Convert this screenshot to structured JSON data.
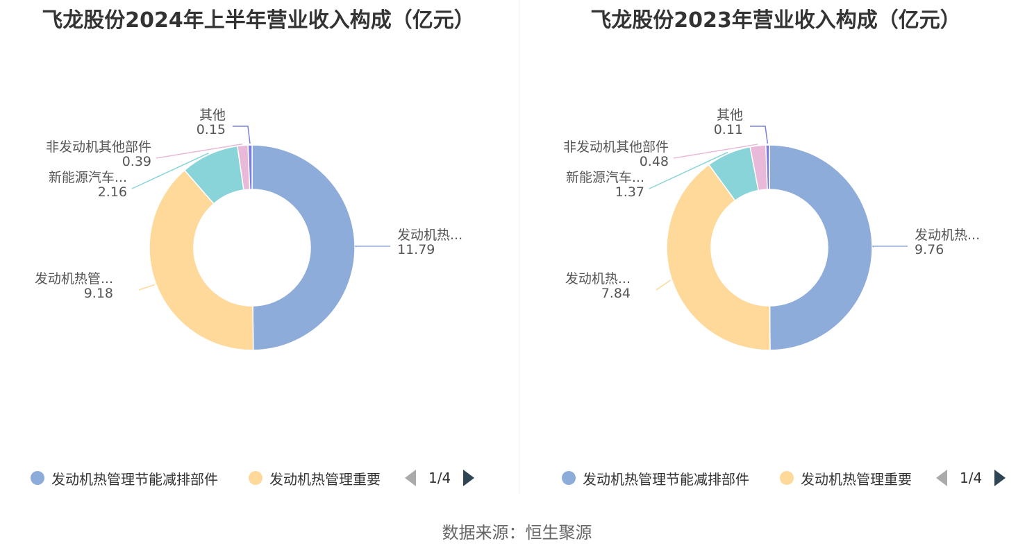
{
  "colors": [
    "#8eacda",
    "#fed99a",
    "#89d4d8",
    "#e8b9d8",
    "#7b7ee0"
  ],
  "chart_data": [
    {
      "type": "pie",
      "title": "飞龙股份2024年上半年营业收入构成（亿元）",
      "series": [
        {
          "name": "发动机热管理节能减排部件",
          "label": "发动机热...",
          "value": 11.79,
          "display": "11.79"
        },
        {
          "name": "发动机热管理重要",
          "label": "发动机热管...",
          "value": 9.18,
          "display": "9.18"
        },
        {
          "name": "新能源汽车",
          "label": "新能源汽车...",
          "value": 2.16,
          "display": "2.16"
        },
        {
          "name": "非发动机其他部件",
          "label": "非发动机其他部件",
          "value": 0.39,
          "display": "0.39"
        },
        {
          "name": "其他",
          "label": "其他",
          "value": 0.15,
          "display": "0.15"
        }
      ],
      "legend": {
        "items": [
          "发动机热管理节能减排部件",
          "发动机热管理重要"
        ],
        "page": "1/4"
      }
    },
    {
      "type": "pie",
      "title": "飞龙股份2023年营业收入构成（亿元）",
      "series": [
        {
          "name": "发动机热管理节能减排部件",
          "label": "发动机热...",
          "value": 9.76,
          "display": "9.76"
        },
        {
          "name": "发动机热管理重要",
          "label": "发动机热...",
          "value": 7.84,
          "display": "7.84"
        },
        {
          "name": "新能源汽车",
          "label": "新能源汽车...",
          "value": 1.37,
          "display": "1.37"
        },
        {
          "name": "非发动机其他部件",
          "label": "非发动机其他部件",
          "value": 0.48,
          "display": "0.48"
        },
        {
          "name": "其他",
          "label": "其他",
          "value": 0.11,
          "display": "0.11"
        }
      ],
      "legend": {
        "items": [
          "发动机热管理节能减排部件",
          "发动机热管理重要"
        ],
        "page": "1/4"
      }
    }
  ],
  "source": "数据来源：恒生聚源"
}
